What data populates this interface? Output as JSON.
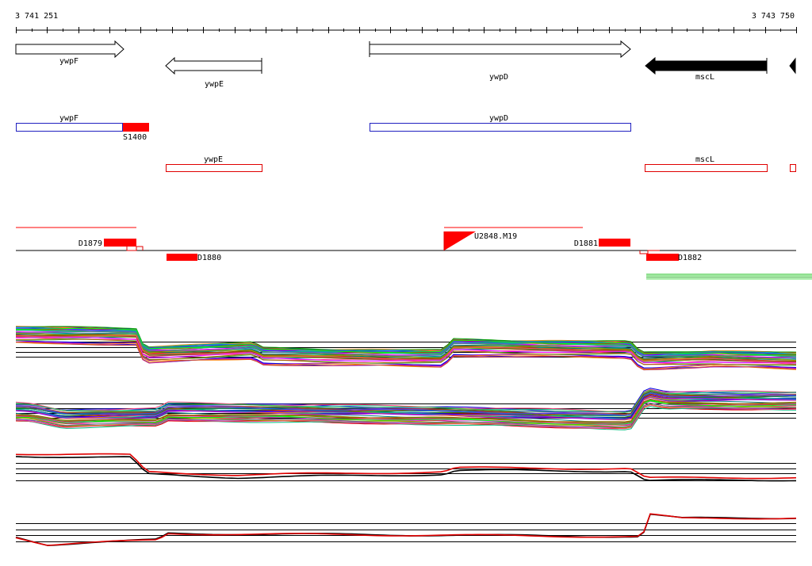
{
  "ruler": {
    "start_label": "3 741 251",
    "end_label": "3 743 750",
    "start": 3741251,
    "end": 3743750
  },
  "genes": [
    {
      "name": "ywpF",
      "start": 3741251,
      "end": 3741596,
      "strand": "+",
      "label": "ywpF",
      "fill": "#ffffff"
    },
    {
      "name": "ywpE",
      "start": 3741729,
      "end": 3742037,
      "strand": "-",
      "label": "ywpE",
      "fill": "#ffffff"
    },
    {
      "name": "ywpD",
      "start": 3742385,
      "end": 3743222,
      "strand": "+",
      "label": "ywpD",
      "fill": "#ffffff"
    },
    {
      "name": "mscL",
      "start": 3743269,
      "end": 3743661,
      "strand": "-",
      "label": "mscL",
      "fill": "#000000"
    },
    {
      "name": "next",
      "start": 3743735,
      "end": 3743750,
      "strand": "-",
      "label": "",
      "fill": "#000000"
    }
  ],
  "annotations": {
    "forward": [
      {
        "label": "ywpF",
        "start": 3741251,
        "end": 3741596,
        "color": "#2020c0"
      },
      {
        "label": "ywpD",
        "start": 3742385,
        "end": 3743222,
        "color": "#2020c0"
      }
    ],
    "reverse": [
      {
        "label": "ywpE",
        "start": 3741729,
        "end": 3742037,
        "color": "#e00000"
      },
      {
        "label": "mscL",
        "start": 3743269,
        "end": 3743661,
        "color": "#e00000"
      },
      {
        "label": "",
        "start": 3743735,
        "end": 3743750,
        "color": "#e00000"
      }
    ],
    "segments": [
      {
        "label": "S1400",
        "start": 3741596,
        "end": 3741680
      }
    ]
  },
  "features": {
    "top": [
      {
        "label": "D1879",
        "start": 3741529,
        "end": 3741635
      },
      {
        "label": "D1881",
        "start": 3742988,
        "end": 3743091
      }
    ],
    "bottom": [
      {
        "label": "D1880",
        "start": 3741729,
        "end": 3741832
      },
      {
        "label": "D1882",
        "start": 3743275,
        "end": 3743378
      }
    ],
    "markers": [
      {
        "label": "U2848.M19",
        "position": 3742625
      }
    ]
  },
  "colors": {
    "gene_fill_highlight": "#000000",
    "forward_box": "#2020c0",
    "reverse_box": "#e00000",
    "feature": "#ff0000",
    "series_a": "#000000",
    "series_b": "#e00000"
  }
}
